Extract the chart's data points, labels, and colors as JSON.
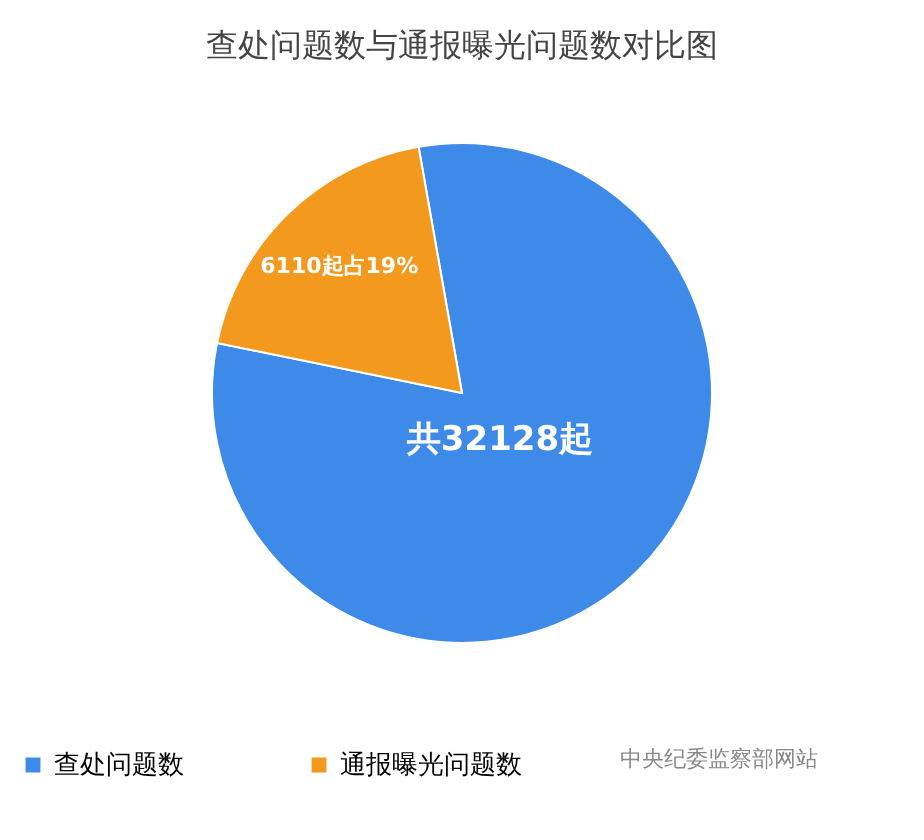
{
  "chart_data": {
    "type": "pie",
    "title": "查处问题数与通报曝光问题数对比图",
    "categories": [
      "查处问题数",
      "通报曝光问题数"
    ],
    "values": [
      26018,
      6110
    ],
    "colors": [
      "#3d8ae8",
      "#f39a1e"
    ],
    "value_labels": [
      null,
      "6110起占19%"
    ],
    "annotations": [
      "共32128起",
      "中央纪委监察部网站"
    ],
    "legend": "bottom left"
  }
}
